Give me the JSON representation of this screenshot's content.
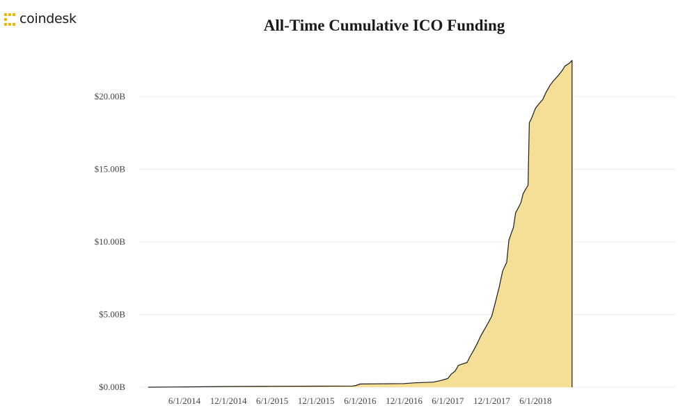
{
  "brand": {
    "name": "coindesk",
    "icon": "coindesk-logo-icon",
    "color": "#f2b600"
  },
  "chart_data": {
    "type": "area",
    "title": "All-Time Cumulative ICO Funding",
    "xlabel": "",
    "ylabel": "",
    "x_ticks": [
      "6/1/2014",
      "12/1/2014",
      "6/1/2015",
      "12/1/2015",
      "6/1/2016",
      "12/1/2016",
      "6/1/2017",
      "12/1/2017",
      "6/1/2018"
    ],
    "y_ticks": [
      "$0.00B",
      "$5.00B",
      "$10.00B",
      "$15.00B",
      "$20.00B"
    ],
    "ylim": [
      0,
      22.5
    ],
    "xlim": [
      "2014-01-01",
      "2018-10-31"
    ],
    "grid": "horizontal",
    "fill_color": "#f5de95",
    "line_color": "#1a1a1a",
    "series": [
      {
        "x": [
          "2014-01-01",
          "2014-06-01",
          "2014-12-01",
          "2015-06-01",
          "2015-12-01",
          "2016-05-01",
          "2016-05-15",
          "2016-06-01",
          "2016-12-01",
          "2017-01-15",
          "2017-04-01",
          "2017-05-01",
          "2017-06-01",
          "2017-06-15",
          "2017-07-01",
          "2017-07-15",
          "2017-08-01",
          "2017-08-20",
          "2017-09-01",
          "2017-09-15",
          "2017-10-01",
          "2017-10-15",
          "2017-11-01",
          "2017-11-15",
          "2017-12-01",
          "2017-12-15",
          "2018-01-01",
          "2018-01-15",
          "2018-02-01",
          "2018-02-10",
          "2018-02-20",
          "2018-03-01",
          "2018-03-10",
          "2018-03-20",
          "2018-04-01",
          "2018-04-10",
          "2018-04-20",
          "2018-05-01",
          "2018-05-06",
          "2018-05-15",
          "2018-06-01",
          "2018-06-15",
          "2018-07-01",
          "2018-07-15",
          "2018-08-01",
          "2018-08-15",
          "2018-09-01",
          "2018-09-20",
          "2018-10-01",
          "2018-10-20",
          "2018-10-31"
        ],
        "values": [
          0.0,
          0.02,
          0.05,
          0.06,
          0.07,
          0.08,
          0.12,
          0.22,
          0.25,
          0.3,
          0.35,
          0.45,
          0.6,
          0.9,
          1.1,
          1.5,
          1.6,
          1.7,
          2.1,
          2.5,
          3.0,
          3.5,
          4.0,
          4.4,
          4.9,
          5.8,
          6.9,
          8.0,
          8.6,
          10.1,
          10.6,
          11.0,
          12.0,
          12.3,
          12.7,
          13.3,
          13.6,
          13.9,
          18.2,
          18.5,
          19.2,
          19.5,
          19.8,
          20.3,
          20.8,
          21.1,
          21.4,
          21.8,
          22.1,
          22.3,
          22.5
        ]
      }
    ]
  }
}
